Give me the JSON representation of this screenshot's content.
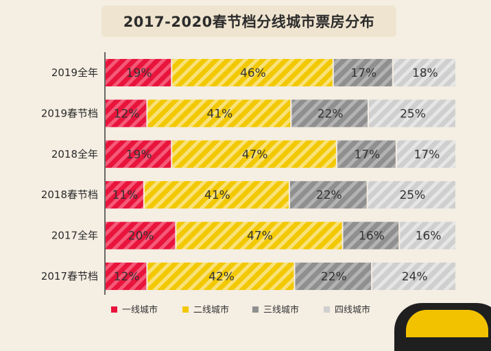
{
  "chart_data": {
    "type": "bar",
    "orientation": "horizontal",
    "stacked": "percent",
    "title": "2017-2020春节档分线城市票房分布",
    "categories": [
      "2019全年",
      "2019春节档",
      "2018全年",
      "2018春节档",
      "2017全年",
      "2017春节档"
    ],
    "series": [
      {
        "name": "一线城市",
        "color": "#e8143c",
        "values": [
          19,
          12,
          19,
          11,
          20,
          12
        ],
        "labels": [
          "19%",
          "12%",
          "19%",
          "11%",
          "20%",
          "12%"
        ]
      },
      {
        "name": "二线城市",
        "color": "#f2c800",
        "values": [
          46,
          41,
          47,
          41,
          47,
          42
        ],
        "labels": [
          "46%",
          "41%",
          "47%",
          "41%",
          "47%",
          "42%"
        ]
      },
      {
        "name": "三线城市",
        "color": "#8f8f8f",
        "values": [
          17,
          22,
          17,
          22,
          16,
          22
        ],
        "labels": [
          "17%",
          "22%",
          "17%",
          "22%",
          "16%",
          "22%"
        ]
      },
      {
        "name": "四线城市",
        "color": "#cfcfcf",
        "values": [
          18,
          25,
          17,
          25,
          16,
          24
        ],
        "labels": [
          "18%",
          "25%",
          "17%",
          "25%",
          "16%",
          "24%"
        ]
      }
    ],
    "legend_position": "bottom",
    "grid": false
  }
}
